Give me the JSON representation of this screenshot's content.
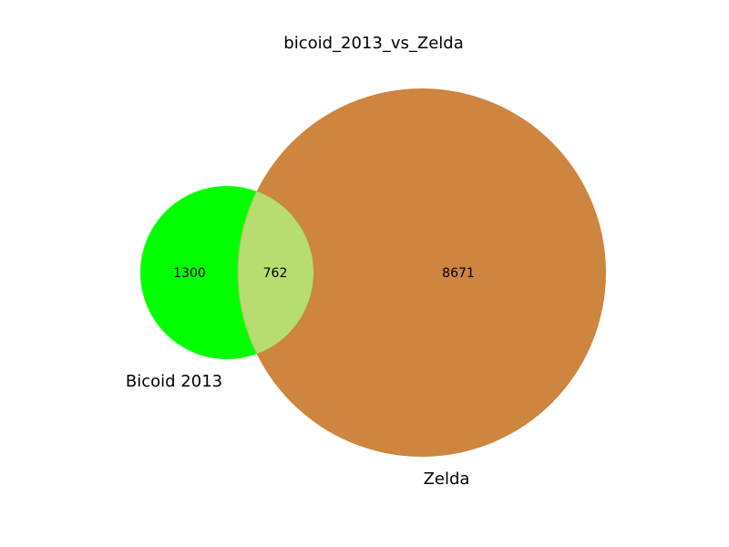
{
  "title": "bicoid_2013_vs_Zelda",
  "sets": [
    {
      "name": "Bicoid 2013",
      "color": "#00ff00",
      "only_count": "1300"
    },
    {
      "name": "Zelda",
      "color": "#cd853f",
      "only_count": "8671"
    }
  ],
  "intersection": {
    "count": "762",
    "color": "#b8dc6f"
  }
}
